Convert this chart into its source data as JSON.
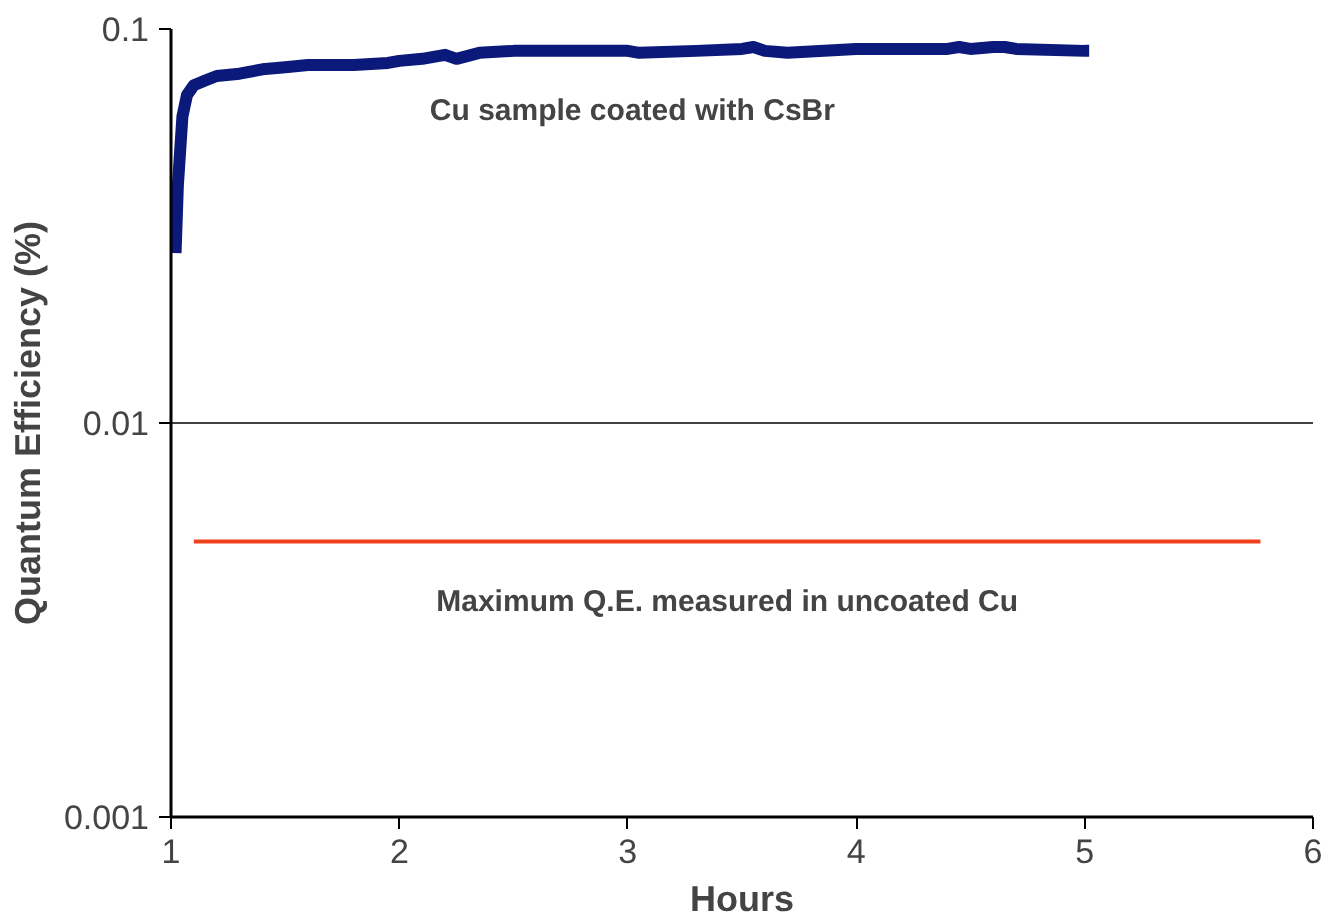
{
  "chart_data": {
    "type": "line",
    "xlabel": "Hours",
    "ylabel": "Quantum Efficiency (%)",
    "log": "y",
    "xlim": [
      1,
      6
    ],
    "ylim": [
      0.001,
      0.1
    ],
    "xticks": [
      1,
      2,
      3,
      4,
      5,
      6
    ],
    "yticks": [
      0.001,
      0.01,
      0.1
    ],
    "grid": "y",
    "marker": "none",
    "line_style": "solid",
    "series": [
      {
        "name": "Cu sample coated with CsBr",
        "color": "#0b1a7a",
        "x": [
          1.02,
          1.03,
          1.05,
          1.07,
          1.1,
          1.15,
          1.2,
          1.3,
          1.4,
          1.5,
          1.6,
          1.8,
          1.95,
          2.0,
          2.1,
          2.2,
          2.25,
          2.35,
          2.5,
          3.0,
          3.05,
          3.3,
          3.5,
          3.55,
          3.6,
          3.7,
          4.0,
          4.4,
          4.45,
          4.5,
          4.6,
          4.65,
          4.7,
          5.0,
          5.02
        ],
        "values": [
          0.027,
          0.04,
          0.06,
          0.068,
          0.072,
          0.074,
          0.076,
          0.077,
          0.079,
          0.08,
          0.081,
          0.081,
          0.082,
          0.083,
          0.084,
          0.086,
          0.084,
          0.087,
          0.088,
          0.088,
          0.087,
          0.088,
          0.089,
          0.09,
          0.088,
          0.087,
          0.089,
          0.089,
          0.09,
          0.089,
          0.09,
          0.09,
          0.089,
          0.088,
          0.088
        ]
      },
      {
        "name": "Maximum Q.E. measured in uncoated Cu",
        "color": "#f0401e",
        "x": [
          1.1,
          5.77
        ],
        "values": [
          0.005,
          0.005
        ]
      }
    ]
  }
}
